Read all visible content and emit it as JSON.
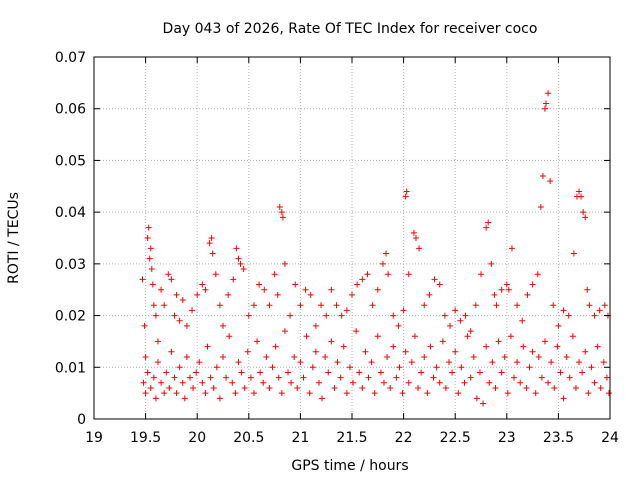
{
  "chart_data": {
    "type": "scatter",
    "title": "Day 043 of 2026, Rate Of TEC Index for receiver coco",
    "xlabel": "GPS time / hours",
    "ylabel": "ROTI / TECUs",
    "xlim": [
      19,
      24
    ],
    "ylim": [
      0,
      0.07
    ],
    "xticks": [
      19,
      19.5,
      20,
      20.5,
      21,
      21.5,
      22,
      22.5,
      23,
      23.5,
      24
    ],
    "xtick_labels": [
      "19",
      "19.5",
      "20",
      "20.5",
      "21",
      "21.5",
      "22",
      "22.5",
      "23",
      "23.5",
      "24"
    ],
    "yticks": [
      0,
      0.01,
      0.02,
      0.03,
      0.04,
      0.05,
      0.06,
      0.07
    ],
    "ytick_labels": [
      "0",
      "0.01",
      "0.02",
      "0.03",
      "0.04",
      "0.05",
      "0.06",
      "0.07"
    ],
    "grid": true,
    "marker": "+",
    "color": "#ff0000",
    "series": [
      {
        "name": "ROTI",
        "points": [
          [
            19.47,
            0.027
          ],
          [
            19.49,
            0.018
          ],
          [
            19.5,
            0.012
          ],
          [
            19.52,
            0.035
          ],
          [
            19.53,
            0.037
          ],
          [
            19.54,
            0.031
          ],
          [
            19.55,
            0.033
          ],
          [
            19.56,
            0.029
          ],
          [
            19.57,
            0.026
          ],
          [
            19.58,
            0.022
          ],
          [
            19.6,
            0.02
          ],
          [
            19.62,
            0.015
          ],
          [
            19.65,
            0.025
          ],
          [
            19.68,
            0.022
          ],
          [
            19.72,
            0.028
          ],
          [
            19.75,
            0.027
          ],
          [
            19.78,
            0.02
          ],
          [
            19.8,
            0.024
          ],
          [
            19.83,
            0.019
          ],
          [
            19.86,
            0.023
          ],
          [
            19.9,
            0.018
          ],
          [
            19.95,
            0.021
          ],
          [
            20.0,
            0.024
          ],
          [
            20.05,
            0.026
          ],
          [
            20.08,
            0.025
          ],
          [
            20.12,
            0.034
          ],
          [
            20.14,
            0.035
          ],
          [
            20.15,
            0.032
          ],
          [
            20.18,
            0.028
          ],
          [
            20.22,
            0.022
          ],
          [
            20.25,
            0.018
          ],
          [
            20.3,
            0.024
          ],
          [
            20.35,
            0.027
          ],
          [
            20.38,
            0.033
          ],
          [
            20.4,
            0.031
          ],
          [
            20.42,
            0.03
          ],
          [
            20.45,
            0.029
          ],
          [
            20.5,
            0.02
          ],
          [
            20.55,
            0.022
          ],
          [
            20.6,
            0.026
          ],
          [
            20.65,
            0.025
          ],
          [
            20.7,
            0.022
          ],
          [
            20.75,
            0.028
          ],
          [
            20.78,
            0.024
          ],
          [
            20.8,
            0.041
          ],
          [
            20.82,
            0.04
          ],
          [
            20.83,
            0.039
          ],
          [
            20.85,
            0.03
          ],
          [
            20.9,
            0.02
          ],
          [
            20.95,
            0.026
          ],
          [
            21.0,
            0.022
          ],
          [
            21.05,
            0.025
          ],
          [
            21.1,
            0.024
          ],
          [
            21.15,
            0.018
          ],
          [
            21.2,
            0.022
          ],
          [
            21.25,
            0.02
          ],
          [
            21.3,
            0.025
          ],
          [
            21.35,
            0.022
          ],
          [
            21.4,
            0.02
          ],
          [
            21.45,
            0.021
          ],
          [
            21.5,
            0.024
          ],
          [
            21.55,
            0.026
          ],
          [
            21.6,
            0.027
          ],
          [
            21.65,
            0.028
          ],
          [
            21.7,
            0.022
          ],
          [
            21.75,
            0.025
          ],
          [
            21.8,
            0.03
          ],
          [
            21.83,
            0.032
          ],
          [
            21.85,
            0.028
          ],
          [
            21.9,
            0.02
          ],
          [
            21.95,
            0.018
          ],
          [
            22.0,
            0.021
          ],
          [
            22.02,
            0.043
          ],
          [
            22.03,
            0.044
          ],
          [
            22.05,
            0.028
          ],
          [
            22.1,
            0.036
          ],
          [
            22.12,
            0.035
          ],
          [
            22.15,
            0.033
          ],
          [
            22.2,
            0.022
          ],
          [
            22.25,
            0.024
          ],
          [
            22.3,
            0.027
          ],
          [
            22.35,
            0.026
          ],
          [
            22.4,
            0.02
          ],
          [
            22.45,
            0.018
          ],
          [
            22.5,
            0.021
          ],
          [
            22.55,
            0.019
          ],
          [
            22.6,
            0.02
          ],
          [
            22.65,
            0.017
          ],
          [
            22.7,
            0.022
          ],
          [
            22.75,
            0.028
          ],
          [
            22.8,
            0.037
          ],
          [
            22.82,
            0.038
          ],
          [
            22.85,
            0.03
          ],
          [
            22.88,
            0.024
          ],
          [
            22.9,
            0.022
          ],
          [
            22.95,
            0.025
          ],
          [
            23.0,
            0.026
          ],
          [
            23.02,
            0.025
          ],
          [
            23.05,
            0.033
          ],
          [
            23.1,
            0.022
          ],
          [
            23.15,
            0.019
          ],
          [
            23.2,
            0.024
          ],
          [
            23.25,
            0.026
          ],
          [
            23.3,
            0.028
          ],
          [
            23.33,
            0.041
          ],
          [
            23.35,
            0.047
          ],
          [
            23.37,
            0.06
          ],
          [
            23.38,
            0.061
          ],
          [
            23.4,
            0.063
          ],
          [
            23.42,
            0.046
          ],
          [
            23.45,
            0.022
          ],
          [
            23.5,
            0.018
          ],
          [
            23.55,
            0.021
          ],
          [
            23.6,
            0.02
          ],
          [
            23.65,
            0.032
          ],
          [
            23.68,
            0.043
          ],
          [
            23.7,
            0.044
          ],
          [
            23.72,
            0.043
          ],
          [
            23.74,
            0.04
          ],
          [
            23.76,
            0.039
          ],
          [
            23.78,
            0.025
          ],
          [
            23.8,
            0.022
          ],
          [
            23.85,
            0.02
          ],
          [
            23.9,
            0.021
          ],
          [
            23.95,
            0.022
          ],
          [
            23.98,
            0.02
          ],
          [
            19.48,
            0.007
          ],
          [
            19.5,
            0.005
          ],
          [
            19.52,
            0.009
          ],
          [
            19.55,
            0.006
          ],
          [
            19.58,
            0.008
          ],
          [
            19.6,
            0.004
          ],
          [
            19.62,
            0.011
          ],
          [
            19.65,
            0.007
          ],
          [
            19.68,
            0.005
          ],
          [
            19.7,
            0.009
          ],
          [
            19.73,
            0.006
          ],
          [
            19.75,
            0.013
          ],
          [
            19.78,
            0.008
          ],
          [
            19.8,
            0.005
          ],
          [
            19.83,
            0.01
          ],
          [
            19.86,
            0.007
          ],
          [
            19.88,
            0.004
          ],
          [
            19.9,
            0.012
          ],
          [
            19.93,
            0.008
          ],
          [
            19.96,
            0.006
          ],
          [
            19.99,
            0.009
          ],
          [
            20.02,
            0.011
          ],
          [
            20.05,
            0.007
          ],
          [
            20.08,
            0.005
          ],
          [
            20.1,
            0.014
          ],
          [
            20.13,
            0.008
          ],
          [
            20.16,
            0.006
          ],
          [
            20.19,
            0.01
          ],
          [
            20.22,
            0.004
          ],
          [
            20.25,
            0.012
          ],
          [
            20.28,
            0.008
          ],
          [
            20.31,
            0.016
          ],
          [
            20.34,
            0.007
          ],
          [
            20.37,
            0.005
          ],
          [
            20.4,
            0.011
          ],
          [
            20.43,
            0.009
          ],
          [
            20.46,
            0.006
          ],
          [
            20.49,
            0.013
          ],
          [
            20.52,
            0.008
          ],
          [
            20.55,
            0.005
          ],
          [
            20.58,
            0.015
          ],
          [
            20.61,
            0.009
          ],
          [
            20.64,
            0.007
          ],
          [
            20.67,
            0.012
          ],
          [
            20.7,
            0.006
          ],
          [
            20.73,
            0.01
          ],
          [
            20.76,
            0.014
          ],
          [
            20.79,
            0.008
          ],
          [
            20.82,
            0.005
          ],
          [
            20.85,
            0.017
          ],
          [
            20.88,
            0.009
          ],
          [
            20.91,
            0.007
          ],
          [
            20.94,
            0.012
          ],
          [
            20.97,
            0.006
          ],
          [
            21.0,
            0.011
          ],
          [
            21.03,
            0.008
          ],
          [
            21.06,
            0.016
          ],
          [
            21.09,
            0.005
          ],
          [
            21.12,
            0.01
          ],
          [
            21.15,
            0.013
          ],
          [
            21.18,
            0.007
          ],
          [
            21.21,
            0.004
          ],
          [
            21.24,
            0.012
          ],
          [
            21.27,
            0.009
          ],
          [
            21.3,
            0.015
          ],
          [
            21.33,
            0.006
          ],
          [
            21.36,
            0.011
          ],
          [
            21.39,
            0.008
          ],
          [
            21.42,
            0.014
          ],
          [
            21.45,
            0.005
          ],
          [
            21.48,
            0.01
          ],
          [
            21.51,
            0.007
          ],
          [
            21.54,
            0.017
          ],
          [
            21.57,
            0.009
          ],
          [
            21.6,
            0.006
          ],
          [
            21.63,
            0.013
          ],
          [
            21.66,
            0.008
          ],
          [
            21.69,
            0.011
          ],
          [
            21.72,
            0.005
          ],
          [
            21.75,
            0.016
          ],
          [
            21.78,
            0.009
          ],
          [
            21.81,
            0.007
          ],
          [
            21.84,
            0.012
          ],
          [
            21.87,
            0.006
          ],
          [
            21.9,
            0.014
          ],
          [
            21.93,
            0.008
          ],
          [
            21.96,
            0.01
          ],
          [
            21.99,
            0.005
          ],
          [
            22.02,
            0.013
          ],
          [
            22.05,
            0.007
          ],
          [
            22.08,
            0.011
          ],
          [
            22.11,
            0.016
          ],
          [
            22.14,
            0.006
          ],
          [
            22.17,
            0.009
          ],
          [
            22.2,
            0.012
          ],
          [
            22.23,
            0.005
          ],
          [
            22.26,
            0.014
          ],
          [
            22.29,
            0.008
          ],
          [
            22.32,
            0.01
          ],
          [
            22.35,
            0.007
          ],
          [
            22.38,
            0.015
          ],
          [
            22.41,
            0.006
          ],
          [
            22.44,
            0.011
          ],
          [
            22.47,
            0.009
          ],
          [
            22.5,
            0.013
          ],
          [
            22.53,
            0.005
          ],
          [
            22.56,
            0.01
          ],
          [
            22.59,
            0.007
          ],
          [
            22.62,
            0.016
          ],
          [
            22.65,
            0.008
          ],
          [
            22.68,
            0.012
          ],
          [
            22.71,
            0.004
          ],
          [
            22.74,
            0.009
          ],
          [
            22.77,
            0.003
          ],
          [
            22.8,
            0.014
          ],
          [
            22.83,
            0.007
          ],
          [
            22.86,
            0.011
          ],
          [
            22.89,
            0.006
          ],
          [
            22.92,
            0.015
          ],
          [
            22.95,
            0.009
          ],
          [
            22.98,
            0.012
          ],
          [
            23.01,
            0.005
          ],
          [
            23.04,
            0.016
          ],
          [
            23.07,
            0.008
          ],
          [
            23.1,
            0.011
          ],
          [
            23.13,
            0.007
          ],
          [
            23.16,
            0.014
          ],
          [
            23.19,
            0.006
          ],
          [
            23.22,
            0.01
          ],
          [
            23.25,
            0.013
          ],
          [
            23.28,
            0.005
          ],
          [
            23.31,
            0.012
          ],
          [
            23.34,
            0.008
          ],
          [
            23.37,
            0.015
          ],
          [
            23.4,
            0.007
          ],
          [
            23.43,
            0.011
          ],
          [
            23.46,
            0.006
          ],
          [
            23.49,
            0.014
          ],
          [
            23.52,
            0.009
          ],
          [
            23.55,
            0.004
          ],
          [
            23.58,
            0.012
          ],
          [
            23.61,
            0.008
          ],
          [
            23.64,
            0.016
          ],
          [
            23.67,
            0.006
          ],
          [
            23.7,
            0.011
          ],
          [
            23.73,
            0.009
          ],
          [
            23.76,
            0.013
          ],
          [
            23.79,
            0.005
          ],
          [
            23.82,
            0.01
          ],
          [
            23.85,
            0.007
          ],
          [
            23.88,
            0.014
          ],
          [
            23.91,
            0.006
          ],
          [
            23.94,
            0.011
          ],
          [
            23.97,
            0.008
          ],
          [
            23.99,
            0.005
          ]
        ]
      }
    ]
  }
}
